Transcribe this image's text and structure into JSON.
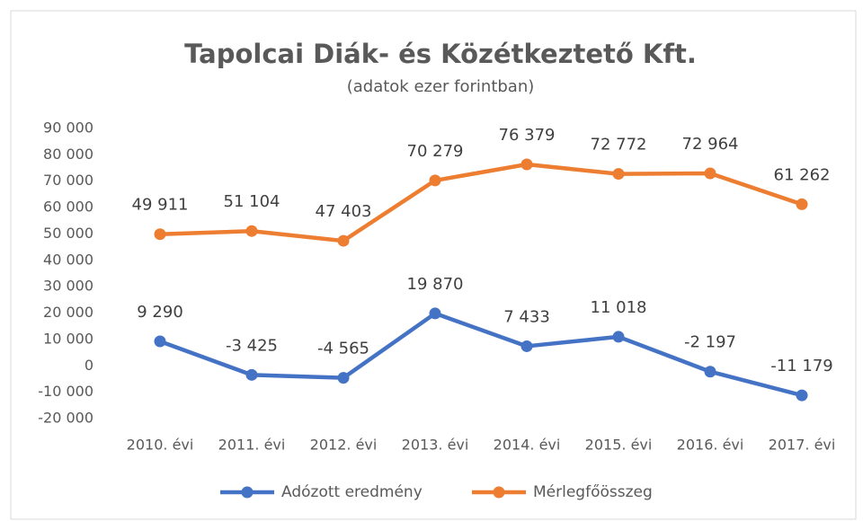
{
  "chart_data": {
    "type": "line",
    "title": "Tapolcai Diák- és Közétkeztető Kft.",
    "subtitle": "(adatok ezer forintban)",
    "categories": [
      "2010. évi",
      "2011. évi",
      "2012. évi",
      "2013. évi",
      "2014. évi",
      "2015. évi",
      "2016. évi",
      "2017. évi"
    ],
    "series": [
      {
        "name": "Adózott eredmény",
        "color": "#4472c4",
        "values": [
          9290,
          -3425,
          -4565,
          19870,
          7433,
          11018,
          -2197,
          -11179
        ],
        "value_labels": [
          "9 290",
          "-3 425",
          "-4 565",
          "19 870",
          "7 433",
          "11 018",
          "-2 197",
          "-11 179"
        ]
      },
      {
        "name": "Mérlegfőösszeg",
        "color": "#ed7d31",
        "values": [
          49911,
          51104,
          47403,
          70279,
          76379,
          72772,
          72964,
          61262
        ],
        "value_labels": [
          "49 911",
          "51 104",
          "47 403",
          "70 279",
          "76 379",
          "72 772",
          "72 964",
          "61 262"
        ]
      }
    ],
    "ylim": [
      -20000,
      90000
    ],
    "yticks": [
      {
        "value": -20000,
        "label": "-20 000"
      },
      {
        "value": -10000,
        "label": "-10 000"
      },
      0,
      {
        "value": 10000,
        "label": "10 000"
      },
      {
        "value": 20000,
        "label": "20 000"
      },
      {
        "value": 30000,
        "label": "30 000"
      },
      {
        "value": 40000,
        "label": "40 000"
      },
      {
        "value": 50000,
        "label": "50 000"
      },
      {
        "value": 60000,
        "label": "60 000"
      },
      {
        "value": 70000,
        "label": "70 000"
      },
      {
        "value": 80000,
        "label": "80 000"
      },
      {
        "value": 90000,
        "label": "90 000"
      }
    ],
    "grid": false,
    "legend": "bottom"
  }
}
